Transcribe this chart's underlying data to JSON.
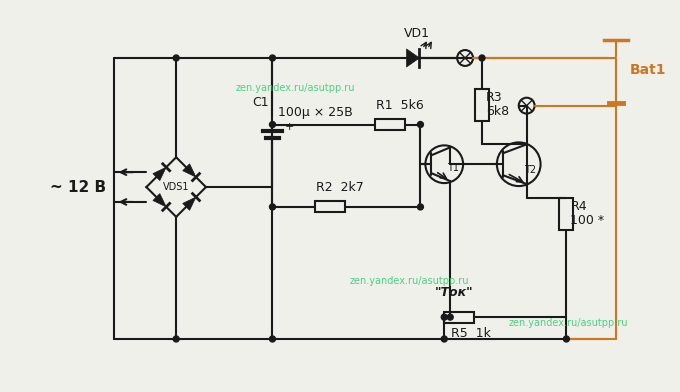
{
  "bg_color": "#f0f0eb",
  "line_color": "#1a1a1a",
  "watermark_color": "#2ecc71",
  "bat_color": "#cc7722",
  "watermark_text": "zen.yandex.ru/asutpp.ru",
  "components": {
    "VDS1_label": "VDS1",
    "C1_label": "C1",
    "C1_value": "100μ × 25В",
    "R1_label": "R1  5k6",
    "R2_label": "R2  2k7",
    "R3_label": "R3",
    "R3_val": "6k8",
    "R4_label": "R4",
    "R4_val": "100 *",
    "R5_label": "R5  1k",
    "VD1_label": "VD1",
    "T1_label": "T1",
    "T2_label": "T2",
    "Bat1_label": "Bat1",
    "Tok_label": "\"Ток\"",
    "V_label": "~ 12 В"
  }
}
